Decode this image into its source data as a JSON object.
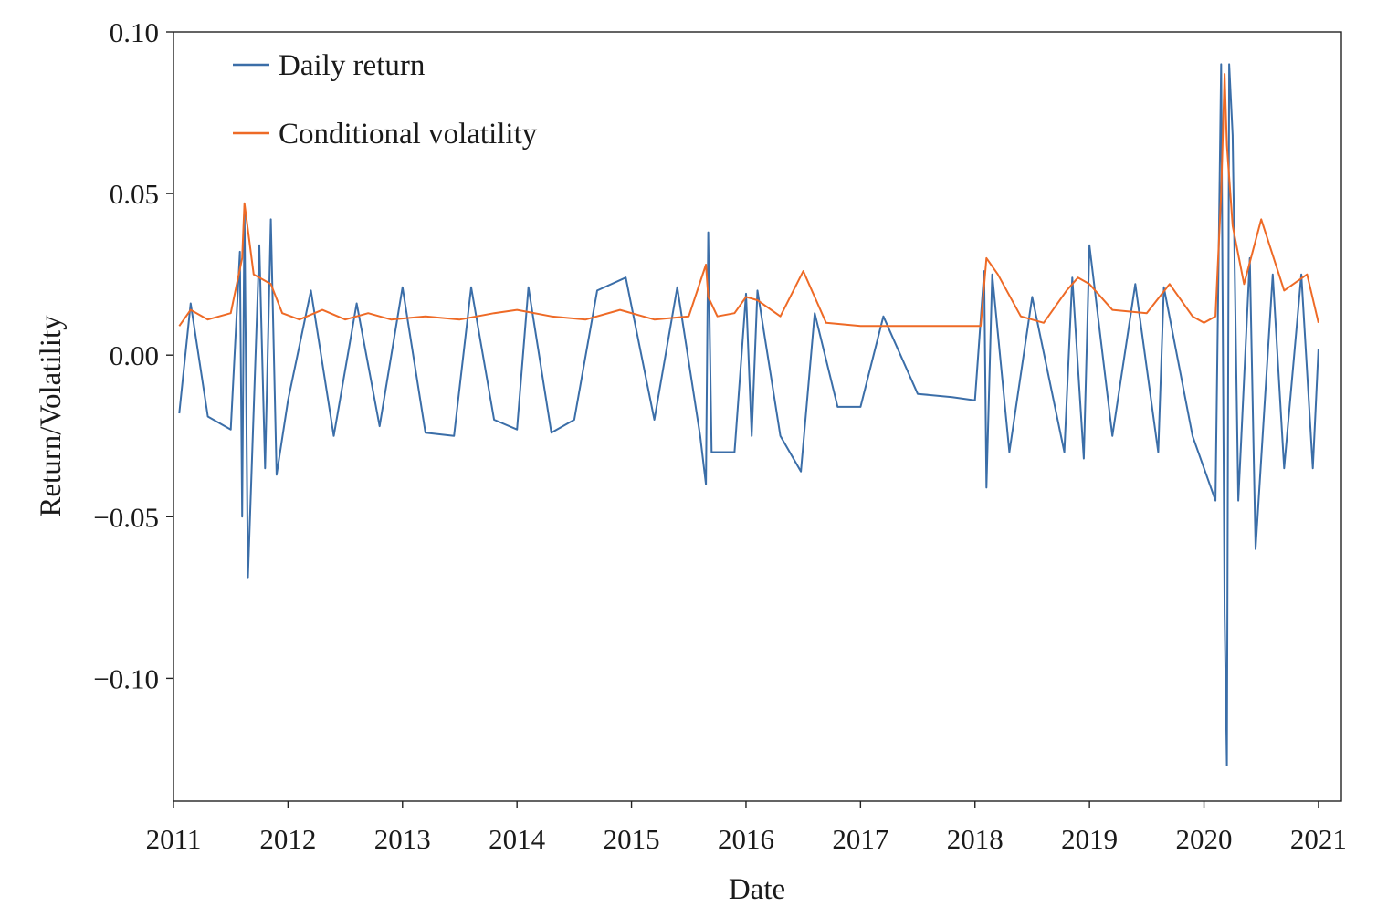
{
  "chart_data": {
    "type": "line",
    "xlabel": "Date",
    "ylabel": "Return/Volatility",
    "x_ticks": [
      "2011",
      "2012",
      "2013",
      "2014",
      "2015",
      "2016",
      "2017",
      "2018",
      "2019",
      "2020",
      "2021"
    ],
    "y_ticks": [
      "0.10",
      "0.05",
      "0.00",
      "−0.05",
      "−0.10"
    ],
    "xlim": [
      2011.0,
      2021.2
    ],
    "ylim": [
      -0.138,
      0.1
    ],
    "grid": false,
    "legend_position": "top-left",
    "series": [
      {
        "name": "Daily return",
        "color": "#3b6ea8",
        "x": [
          2011.05,
          2011.15,
          2011.3,
          2011.5,
          2011.58,
          2011.6,
          2011.62,
          2011.65,
          2011.75,
          2011.8,
          2011.85,
          2011.9,
          2012.0,
          2012.2,
          2012.4,
          2012.6,
          2012.8,
          2013.0,
          2013.2,
          2013.45,
          2013.6,
          2013.8,
          2014.0,
          2014.1,
          2014.3,
          2014.5,
          2014.7,
          2014.95,
          2015.2,
          2015.4,
          2015.6,
          2015.65,
          2015.67,
          2015.7,
          2015.9,
          2016.0,
          2016.05,
          2016.1,
          2016.3,
          2016.48,
          2016.6,
          2016.8,
          2017.0,
          2017.2,
          2017.5,
          2017.8,
          2018.0,
          2018.08,
          2018.1,
          2018.15,
          2018.3,
          2018.5,
          2018.78,
          2018.85,
          2018.95,
          2019.0,
          2019.2,
          2019.4,
          2019.6,
          2019.65,
          2019.9,
          2020.1,
          2020.15,
          2020.18,
          2020.2,
          2020.22,
          2020.25,
          2020.3,
          2020.4,
          2020.45,
          2020.6,
          2020.7,
          2020.85,
          2020.95,
          2021.0
        ],
        "y": [
          -0.018,
          0.016,
          -0.019,
          -0.023,
          0.032,
          -0.05,
          0.046,
          -0.069,
          0.034,
          -0.035,
          0.042,
          -0.037,
          -0.014,
          0.02,
          -0.025,
          0.016,
          -0.022,
          0.021,
          -0.024,
          -0.025,
          0.021,
          -0.02,
          -0.023,
          0.021,
          -0.024,
          -0.02,
          0.02,
          0.024,
          -0.02,
          0.021,
          -0.025,
          -0.04,
          0.038,
          -0.03,
          -0.03,
          0.019,
          -0.025,
          0.02,
          -0.025,
          -0.036,
          0.013,
          -0.016,
          -0.016,
          0.012,
          -0.012,
          -0.013,
          -0.014,
          0.026,
          -0.041,
          0.025,
          -0.03,
          0.018,
          -0.03,
          0.024,
          -0.032,
          0.034,
          -0.025,
          0.022,
          -0.03,
          0.021,
          -0.025,
          -0.045,
          0.09,
          -0.08,
          -0.127,
          0.09,
          0.068,
          -0.045,
          0.03,
          -0.06,
          0.025,
          -0.035,
          0.025,
          -0.035,
          0.002
        ]
      },
      {
        "name": "Conditional volatility",
        "color": "#ee6a26",
        "x": [
          2011.05,
          2011.15,
          2011.3,
          2011.5,
          2011.6,
          2011.62,
          2011.7,
          2011.85,
          2011.95,
          2012.1,
          2012.3,
          2012.5,
          2012.7,
          2012.9,
          2013.2,
          2013.5,
          2013.8,
          2014.0,
          2014.3,
          2014.6,
          2014.9,
          2015.2,
          2015.5,
          2015.65,
          2015.67,
          2015.75,
          2015.9,
          2016.0,
          2016.1,
          2016.3,
          2016.5,
          2016.7,
          2017.0,
          2017.3,
          2017.6,
          2017.9,
          2018.05,
          2018.1,
          2018.2,
          2018.4,
          2018.6,
          2018.8,
          2018.9,
          2019.0,
          2019.2,
          2019.5,
          2019.7,
          2019.9,
          2020.0,
          2020.1,
          2020.15,
          2020.18,
          2020.2,
          2020.25,
          2020.35,
          2020.5,
          2020.7,
          2020.9,
          2021.0
        ],
        "y": [
          0.009,
          0.014,
          0.011,
          0.013,
          0.03,
          0.047,
          0.025,
          0.022,
          0.013,
          0.011,
          0.014,
          0.011,
          0.013,
          0.011,
          0.012,
          0.011,
          0.013,
          0.014,
          0.012,
          0.011,
          0.014,
          0.011,
          0.012,
          0.028,
          0.018,
          0.012,
          0.013,
          0.018,
          0.017,
          0.012,
          0.026,
          0.01,
          0.009,
          0.009,
          0.009,
          0.009,
          0.009,
          0.03,
          0.025,
          0.012,
          0.01,
          0.02,
          0.024,
          0.022,
          0.014,
          0.013,
          0.022,
          0.012,
          0.01,
          0.012,
          0.05,
          0.087,
          0.065,
          0.04,
          0.022,
          0.042,
          0.02,
          0.025,
          0.01
        ]
      }
    ]
  }
}
